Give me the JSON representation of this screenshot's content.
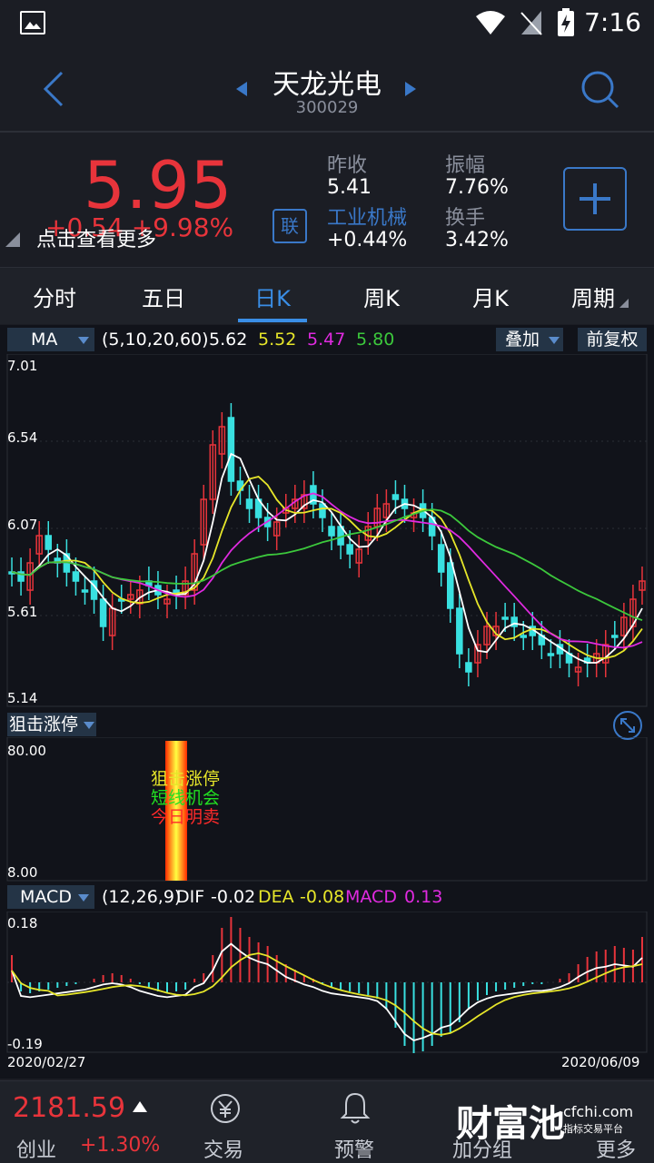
{
  "status": {
    "time": "7:16"
  },
  "header": {
    "title": "天龙光电",
    "code": "300029"
  },
  "quote": {
    "price": "5.95",
    "change": "+0.54  +9.98%",
    "more_tip": "点击查看更多",
    "prev_close_label": "昨收",
    "prev_close_value": "5.41",
    "amplitude_label": "振幅",
    "amplitude_value": "7.76%",
    "industry_label": "工业机械",
    "industry_value": "+0.44%",
    "turnover_label": "换手",
    "turnover_value": "3.42%",
    "link_label": "联",
    "colors": {
      "up": "#e8343b",
      "accent": "#3a78c8"
    }
  },
  "tabs": [
    {
      "label": "分时"
    },
    {
      "label": "五日"
    },
    {
      "label": "日K"
    },
    {
      "label": "周K"
    },
    {
      "label": "月K"
    },
    {
      "label": "周期"
    }
  ],
  "ma_bar": {
    "selector": "MA",
    "params": "(5,10,20,60)",
    "ma5": "5.62",
    "ma10": "5.52",
    "ma20": "5.47",
    "ma60": "5.80",
    "overlay": "叠加",
    "adjust": "前复权"
  },
  "kline": {
    "y_labels": [
      "7.01",
      "6.54",
      "6.07",
      "5.61",
      "5.14"
    ]
  },
  "signal": {
    "selector": "狙击涨停",
    "y_top": "80.00",
    "y_bottom": "8.00",
    "line1": "狙击涨停",
    "line2": "短线机会",
    "line3": "今日明卖"
  },
  "macd": {
    "selector": "MACD",
    "params": "(12,26,9)",
    "dif_label": "DIF",
    "dif_value": "-0.02",
    "dea_label": "DEA",
    "dea_value": "-0.08",
    "macd_label": "MACD",
    "macd_value": "0.13",
    "y_top": "0.18",
    "y_bottom": "-0.19",
    "date_start": "2020/02/27",
    "date_end": "2020/06/09"
  },
  "bottom": {
    "index_value": "2181.59",
    "index_name": "创业",
    "index_change": "+1.30%",
    "trade_label": "交易",
    "alert_label": "预警",
    "watch_label": "加分组",
    "more_label": "更多",
    "watermark": "财富池",
    "watermark_url": "cfchi.com",
    "watermark_sub": "指标交易平台"
  }
}
